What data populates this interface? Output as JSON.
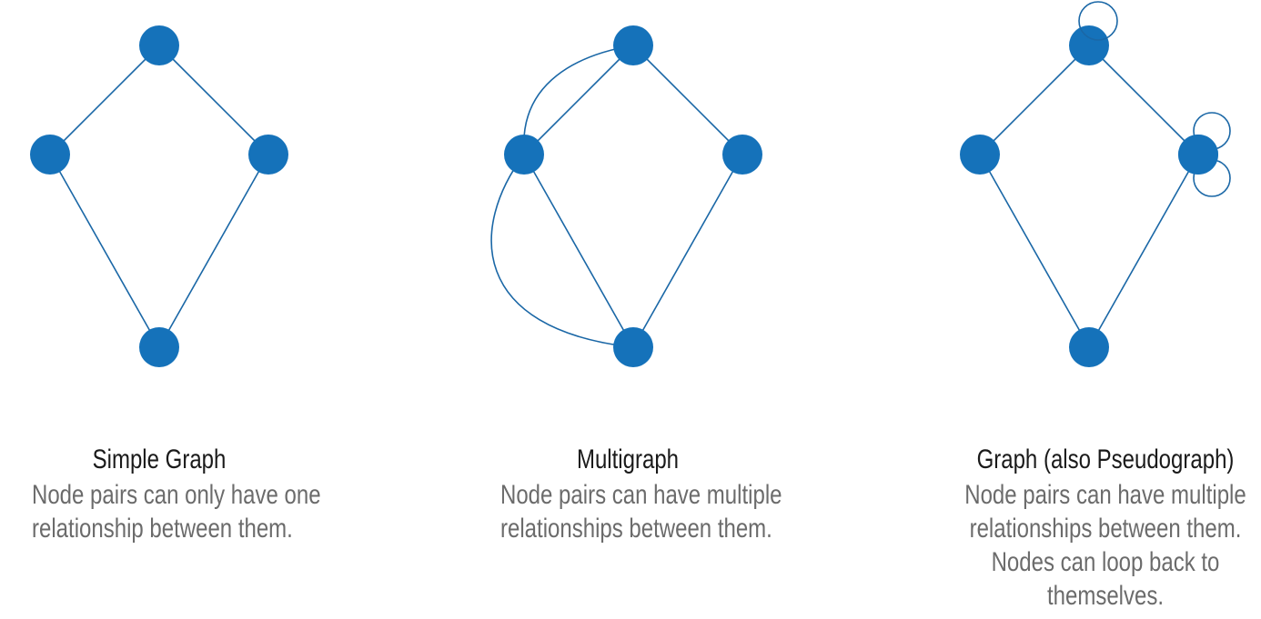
{
  "colors": {
    "node": "#1572ba",
    "edge": "#1a67a6",
    "title_text": "#1a1a1a",
    "desc_text": "#6b6b6b",
    "background": "#ffffff"
  },
  "panels": [
    {
      "id": "simple",
      "title": "Simple Graph",
      "description_lines": [
        "Node pairs can only have one",
        "relationship between them."
      ]
    },
    {
      "id": "multi",
      "title": "Multigraph",
      "description_lines": [
        "Node pairs can have multiple",
        "relationships between them."
      ]
    },
    {
      "id": "pseudo",
      "title": "Graph (also Pseudograph)",
      "description_lines": [
        "Node pairs can have multiple",
        "relationships between them.",
        "Nodes can loop back to",
        "themselves."
      ]
    }
  ],
  "graph": {
    "nodes": [
      "top",
      "left",
      "right",
      "bottom"
    ],
    "edges": [
      [
        "top",
        "left"
      ],
      [
        "top",
        "right"
      ],
      [
        "left",
        "bottom"
      ],
      [
        "right",
        "bottom"
      ]
    ],
    "multi_extra_edges": [
      [
        "left",
        "top"
      ],
      [
        "left",
        "bottom"
      ],
      [
        "left",
        "bottom"
      ]
    ],
    "pseudo_self_loops": [
      [
        "top",
        1
      ],
      [
        "right",
        2
      ]
    ]
  }
}
